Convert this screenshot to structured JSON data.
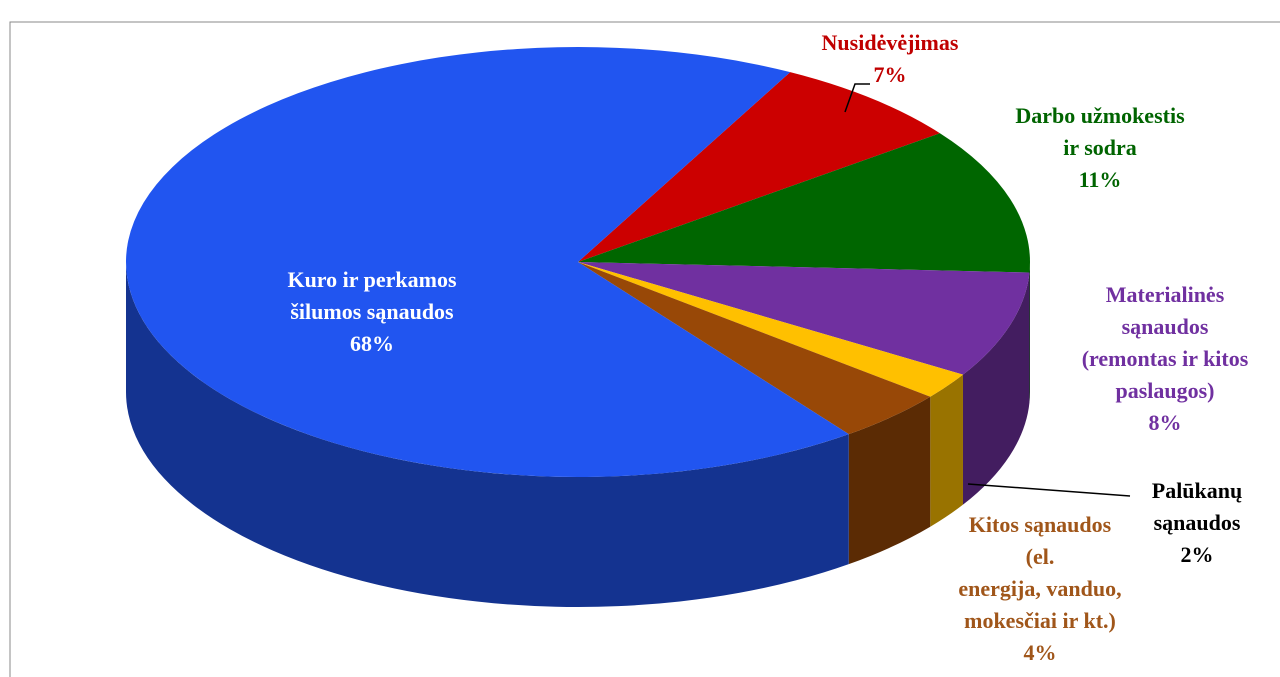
{
  "chart_data": {
    "type": "pie3d",
    "categories": [
      "Nusidėvėjimas",
      "Darbo užmokestis\nir sodra",
      "Materialinės\nsąnaudos\n(remontas ir kitos\npaslaugos)",
      "Palūkanų\nsąnaudos",
      "Kitos sąnaudos\n(el.\nenergija, vanduo,\nmokesčiai ir kt.)",
      "Kuro ir perkamos\nšilumos sąnaudos"
    ],
    "values": [
      7,
      11,
      8,
      2,
      4,
      68
    ],
    "value_labels": [
      "7%",
      "11%",
      "8%",
      "2%",
      "4%",
      "68%"
    ],
    "colors": [
      "#cc0000",
      "#006600",
      "#7030a0",
      "#ffc000",
      "#984807",
      "#2155f0"
    ],
    "label_colors": [
      "#c00000",
      "#006400",
      "#7030a0",
      "#000000",
      "#a0561a",
      "#ffffff"
    ]
  }
}
